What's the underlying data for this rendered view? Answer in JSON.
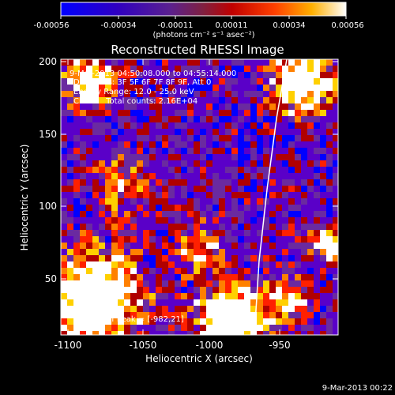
{
  "colorbar": {
    "tick_labels": [
      "-0.00056",
      "-0.00034",
      "-0.00011",
      "0.00011",
      "0.00034",
      "0.00056"
    ],
    "units_label": "(photons cm⁻² s⁻¹ asec⁻²)"
  },
  "plot": {
    "title": "Reconstructed RHESSI Image",
    "xlabel": "Heliocentric X (arcsec)",
    "ylabel": "Heliocentric Y (arcsec)",
    "x_ticks": [
      "-1100",
      "-1050",
      "-1000",
      "-950"
    ],
    "y_ticks": [
      "50",
      "100",
      "150",
      "200"
    ],
    "xlim": [
      -1100,
      -915
    ],
    "ylim": [
      5,
      205
    ]
  },
  "annotations": {
    "time_range": "9-Mar-2013 04:50:08.000 to 04:55:14.000",
    "detectors": "Detectors: 3F 5F 6F 7F 8F 9F, Att 0",
    "energy": "Energy Range: 12.0 - 25.0 keV",
    "method": "Clean    Total counts: 2.16E+04",
    "peak": "Position of Peak = [-982,21]"
  },
  "footer": {
    "timestamp": "9-Mar-2013 00:22"
  },
  "colors": {
    "background": "#000000",
    "limb_line": "#ffffff",
    "colormap": [
      "#0000ff",
      "#5a00c8",
      "#6a2aa0",
      "#b00000",
      "#ff2000",
      "#ff8000",
      "#ffd000",
      "#ffffff"
    ]
  }
}
